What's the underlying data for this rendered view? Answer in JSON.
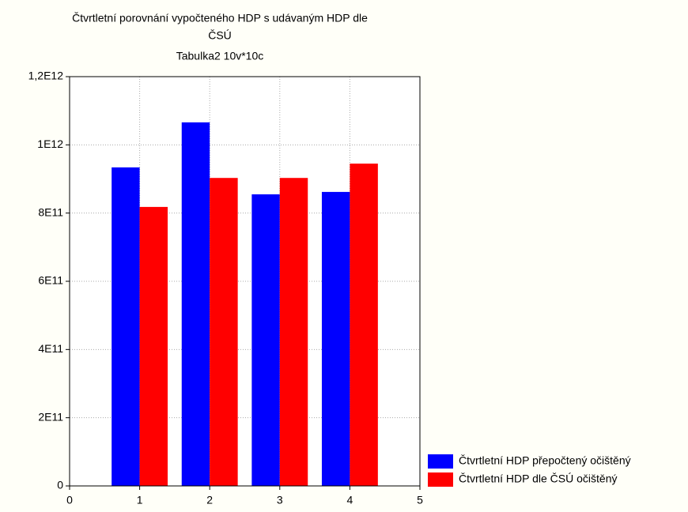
{
  "chart_data": {
    "type": "bar",
    "title": [
      "Čtvrtletní porovnání vypočteného HDP s udávaným HDP dle",
      "ČSÚ"
    ],
    "subtitle": "Tabulka2 10v*10c",
    "x": [
      1,
      2,
      3,
      4
    ],
    "series": [
      {
        "name": "Čtvrtletní HDP přepočtený očištěný",
        "color": "#0000ff",
        "values": [
          934000000000,
          1066000000000,
          855000000000,
          862000000000
        ]
      },
      {
        "name": "Čtvrtletní  HDP dle ČSÚ očištěný",
        "color": "#ff0000",
        "values": [
          818000000000,
          903000000000,
          903000000000,
          945000000000
        ]
      }
    ],
    "xlim": [
      0,
      5
    ],
    "xticks": [
      0,
      1,
      2,
      3,
      4,
      5
    ],
    "ylim": [
      0,
      1200000000000
    ],
    "yticks": [
      0,
      {
        "value": 200000000000,
        "label": "2E11"
      },
      {
        "value": 400000000000,
        "label": "4E11"
      },
      {
        "value": 600000000000,
        "label": "6E11"
      },
      {
        "value": 800000000000,
        "label": "8E11"
      },
      {
        "value": 1000000000000,
        "label": "1E12"
      },
      {
        "value": 1200000000000,
        "label": "1,2E12"
      }
    ],
    "grid": true,
    "legend": "lower right"
  }
}
